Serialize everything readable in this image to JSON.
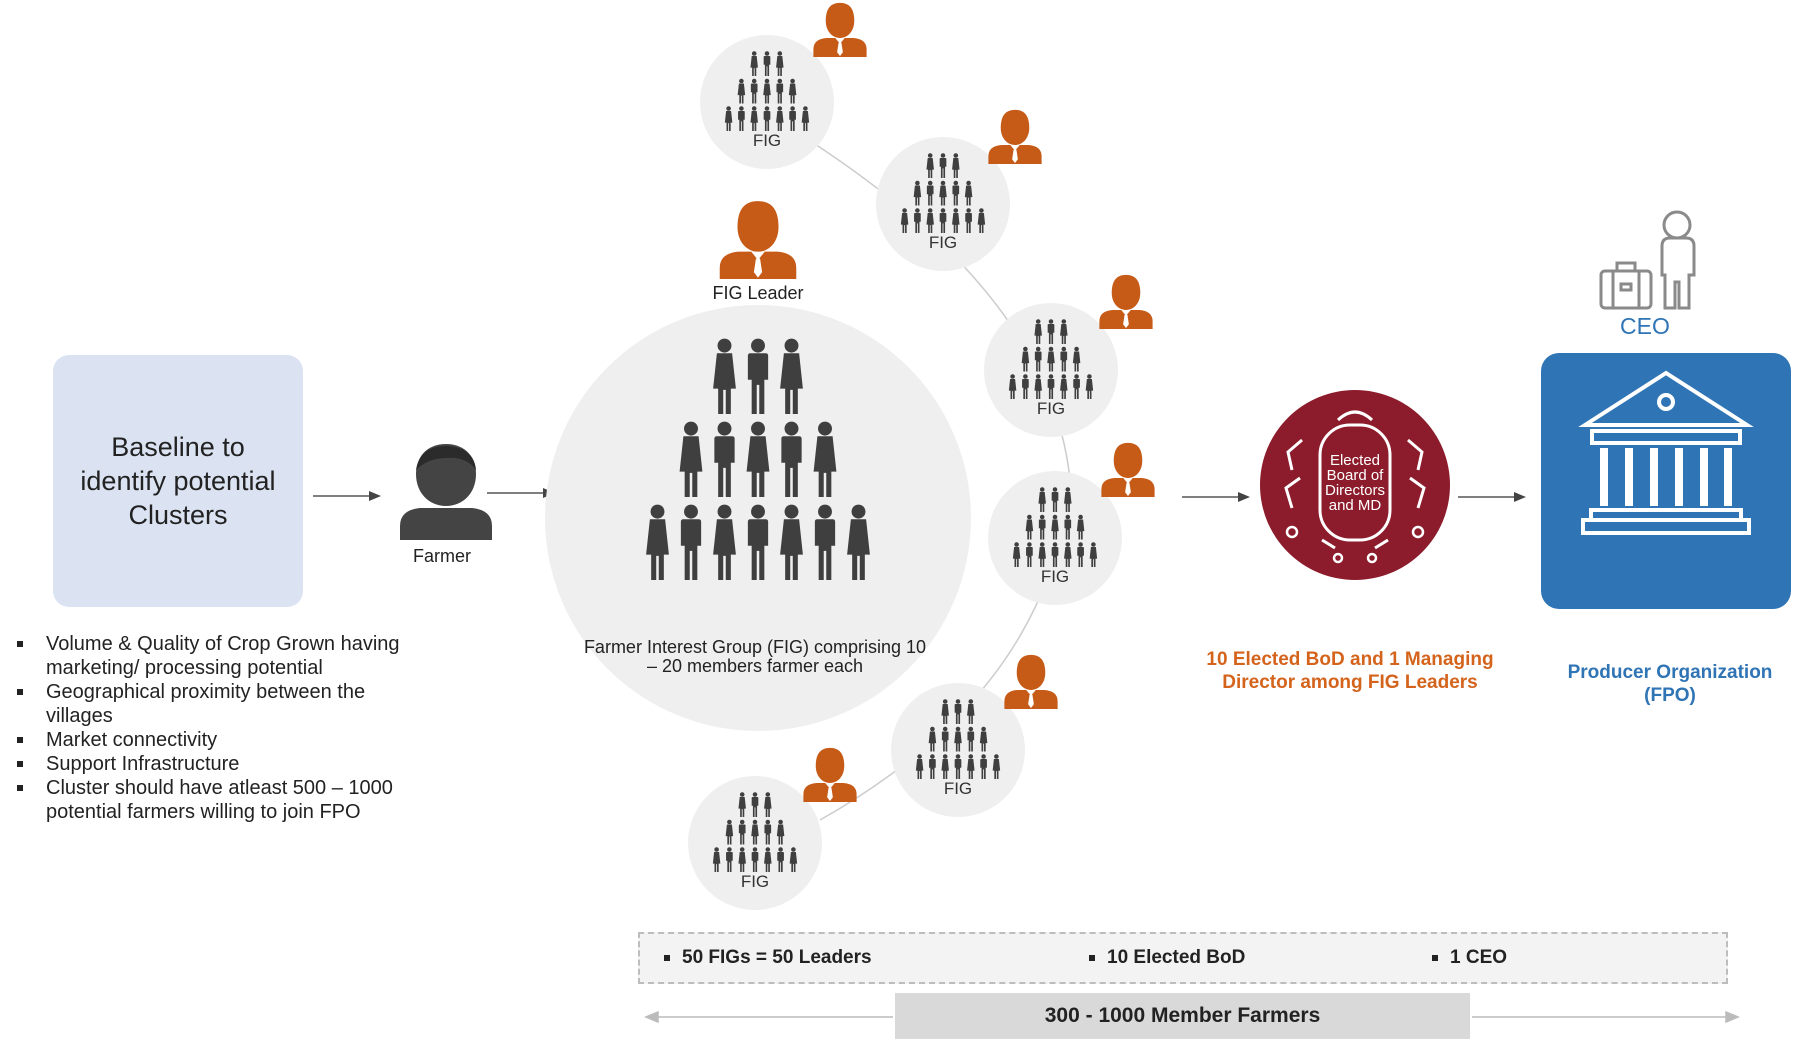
{
  "baseline": {
    "text": "Baseline to identify potential Clusters"
  },
  "farmer": {
    "label": "Farmer"
  },
  "fig_leader": {
    "label": "FIG Leader"
  },
  "fig_group": {
    "description": "Farmer Interest Group (FIG) comprising 10 – 20 members farmer each"
  },
  "fig_circles": {
    "label": "FIG"
  },
  "criteria": [
    "Volume & Quality of Crop Grown having marketing/ processing potential",
    "Geographical proximity between the villages",
    "Market connectivity",
    "Support Infrastructure",
    "Cluster should have atleast 500 – 1000 potential farmers willing to join FPO"
  ],
  "board": {
    "icon_text": [
      "Elected",
      "Board of",
      "Directors",
      "and MD"
    ],
    "caption": "10 Elected BoD and 1 Managing Director among FIG Leaders"
  },
  "ceo": {
    "label": "CEO"
  },
  "fpo": {
    "caption": "Producer Organization (FPO)"
  },
  "summary": {
    "items": [
      "50 FIGs = 50 Leaders",
      "10 Elected BoD",
      "1 CEO"
    ]
  },
  "members": {
    "label": "300 - 1000 Member Farmers"
  },
  "icons": [
    "farmer-icon",
    "leader-icon",
    "people-pyramid-icon",
    "boardroom-icon",
    "ceo-icon",
    "briefcase-icon",
    "institution-icon",
    "arrow-right-icon"
  ],
  "colors": {
    "leader_orange": "#c65b18",
    "board_maroon": "#8c1c2b",
    "fpo_blue": "#2f74b5",
    "people_gray": "#3f3f3f",
    "circle_gray": "#efefef"
  }
}
